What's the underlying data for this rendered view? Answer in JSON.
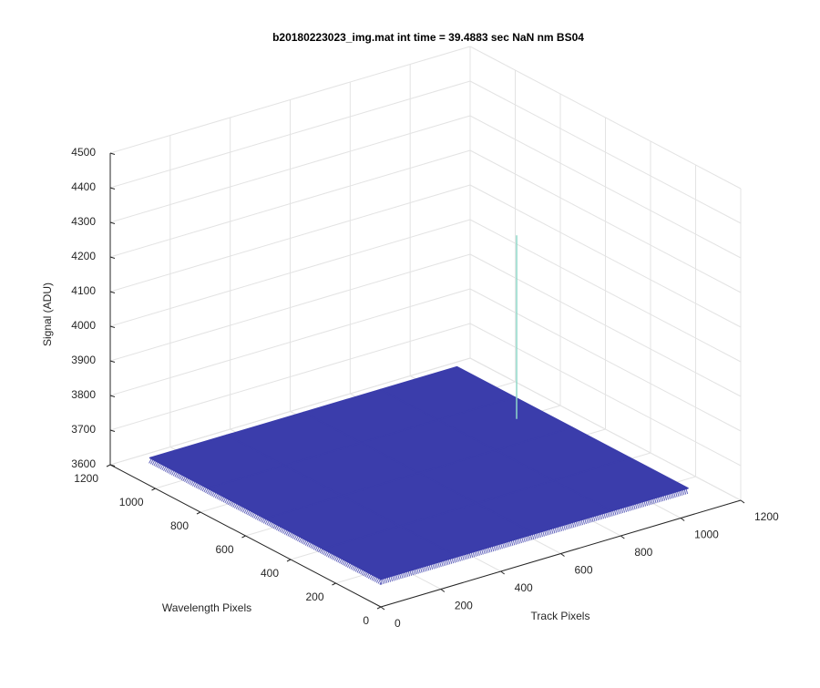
{
  "chart_data": {
    "type": "surface3d",
    "title": "b20180223023_img.mat int time = 39.4883 sec  NaN nm BS04",
    "xlabel": "Track Pixels",
    "ylabel": "Wavelength Pixels",
    "zlabel": "Signal (ADU)",
    "xlim": [
      0,
      1200
    ],
    "ylim": [
      0,
      1200
    ],
    "zlim": [
      3600,
      4500
    ],
    "xticks": [
      0,
      200,
      400,
      600,
      800,
      1000,
      1200
    ],
    "yticks": [
      0,
      200,
      400,
      600,
      800,
      1000,
      1200
    ],
    "zticks": [
      3600,
      3700,
      3800,
      3900,
      4000,
      4100,
      4200,
      4300,
      4400,
      4500
    ],
    "grid": true,
    "color": "#3b3dab",
    "surface": {
      "x": [
        0,
        256,
        512,
        768,
        1024
      ],
      "y": [
        0,
        256,
        512,
        768,
        1024
      ],
      "z": [
        [
          3680,
          3680,
          3680,
          3680,
          3680
        ],
        [
          3680,
          3680,
          3680,
          3680,
          3680
        ],
        [
          3680,
          3680,
          3680,
          3680,
          3680
        ],
        [
          3680,
          3680,
          3680,
          3680,
          3680
        ],
        [
          3680,
          3680,
          3680,
          3680,
          3680
        ]
      ]
    },
    "spike": {
      "x": 940,
      "y": 648,
      "z": 4210,
      "color": "#8fd8c8"
    }
  }
}
